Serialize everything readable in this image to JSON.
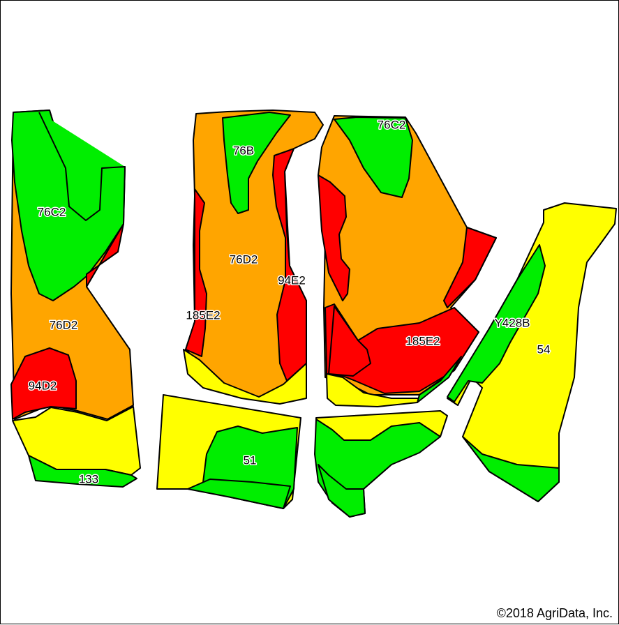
{
  "colors": {
    "green": "#00ee00",
    "orange": "#ffa500",
    "red": "#ff0000",
    "yellow": "#ffff00",
    "outline": "#000000",
    "background": "#ffffff"
  },
  "soil_labels": {
    "west_76c2": "76C2",
    "west_76d2": "76D2",
    "west_94d2": "94D2",
    "west_133": "133",
    "center_76b": "76B",
    "center_76d2": "76D2",
    "center_94e2": "94E2",
    "center_185e2": "185E2",
    "center_51": "51",
    "east_76c2": "76C2",
    "east_185e2": "185E2",
    "east_y428b": "Y428B",
    "east_54": "54"
  },
  "copyright": "©2018 AgriData, Inc."
}
